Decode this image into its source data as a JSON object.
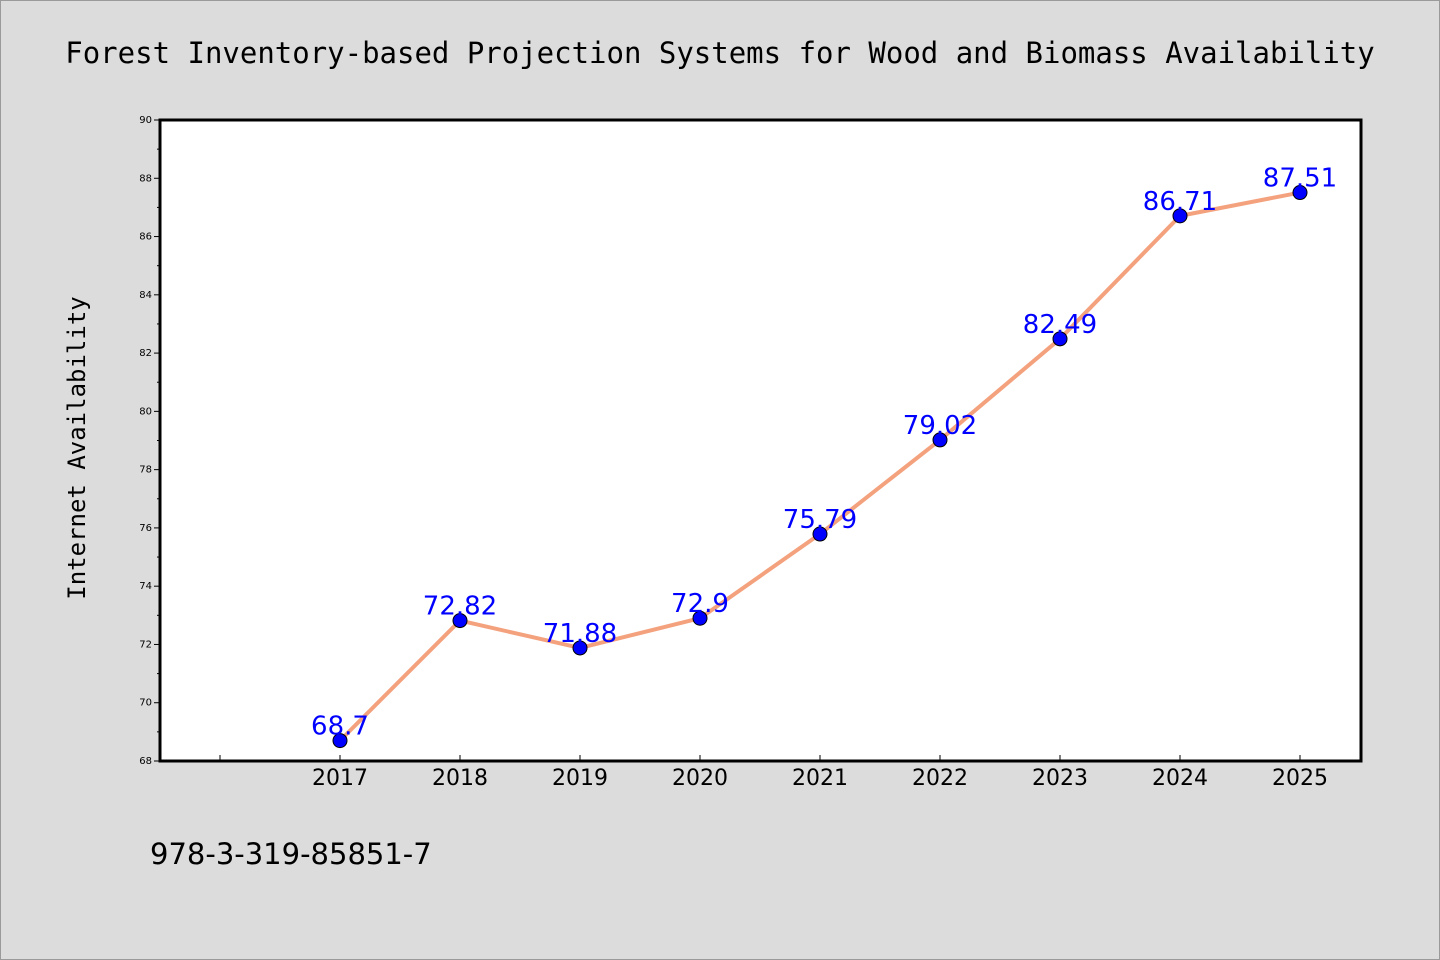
{
  "colors": {
    "background": "#dcdcdc",
    "plot_background": "#ffffff",
    "line": "#f4a27e",
    "marker": "#0000ff",
    "label": "#0000ff"
  },
  "footer_code": "978-3-319-85851-7",
  "chart_data": {
    "type": "line",
    "title": "Forest Inventory-based Projection Systems for Wood and Biomass Availability",
    "xlabel": "",
    "ylabel": "Internet Availability",
    "x": [
      "2017",
      "2018",
      "2019",
      "2020",
      "2021",
      "2022",
      "2023",
      "2024",
      "2025"
    ],
    "series": [
      {
        "values": [
          68.7,
          72.82,
          71.88,
          72.9,
          75.79,
          79.02,
          82.49,
          86.71,
          87.51
        ],
        "labels": [
          "68.7",
          "72.82",
          "71.88",
          "72.9",
          "75.79",
          "79.02",
          "82.49",
          "86.71",
          "87.51"
        ]
      }
    ],
    "ylim": [
      68,
      90
    ],
    "yticks": [
      "68",
      "70",
      "72",
      "74",
      "76",
      "78",
      "80",
      "82",
      "84",
      "86",
      "88",
      "90"
    ],
    "grid": false,
    "legend": "none"
  }
}
